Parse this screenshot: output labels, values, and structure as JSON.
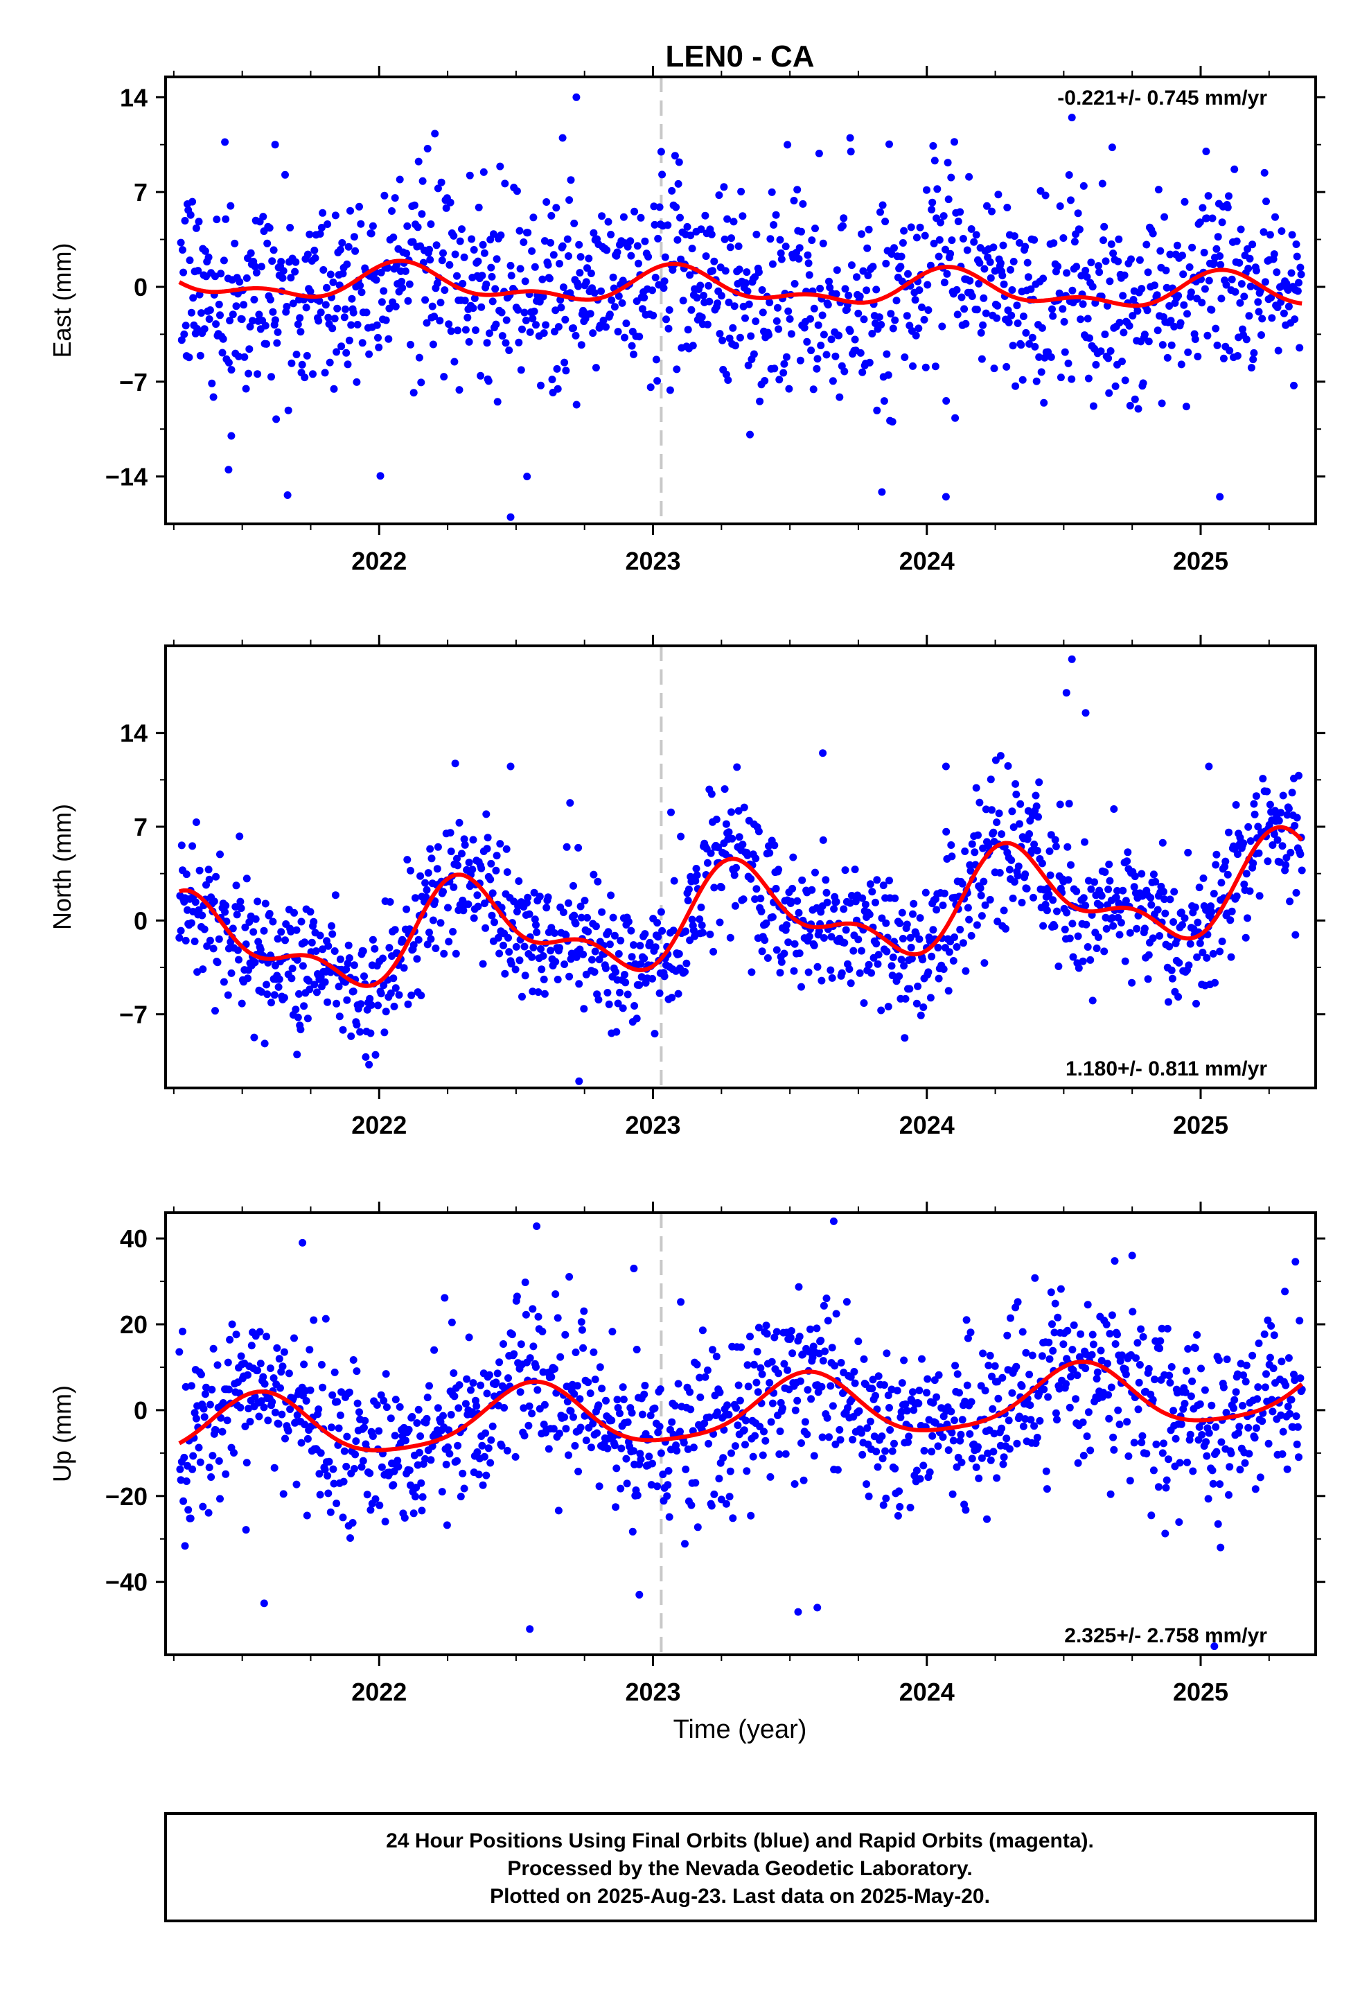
{
  "chart_data": [
    {
      "type": "scatter",
      "panel": "east",
      "title": "LEN0 - CA",
      "ylabel": "East (mm)",
      "xlabel": "",
      "xlim": [
        2021.22,
        2025.42
      ],
      "ylim": [
        -17.5,
        15.5
      ],
      "yticks": [
        14,
        7,
        0,
        -7,
        -14
      ],
      "yticklabels": [
        "14",
        "7",
        "0",
        "−7",
        "−14"
      ],
      "xticks": [
        2022,
        2023,
        2024,
        2025
      ],
      "xticklabels": [
        "2022",
        "2023",
        "2024",
        "2025"
      ],
      "reference_line_x": 2023.03,
      "rate_label": "-0.221+/- 0.745 mm/yr",
      "rate_position": "top-right",
      "model": {
        "rate": -0.221,
        "annual": [
          0.6,
          0.9
        ],
        "semiannual": [
          0.5,
          0.4
        ],
        "offset": 0.0
      },
      "series": [
        {
          "color": "#0000ff",
          "scatter_sd": 3.7,
          "n_points": 1380,
          "outliers": [
            [
              2021.45,
              -13.5
            ],
            [
              2021.46,
              -11.0
            ],
            [
              2022.48,
              -17.0
            ],
            [
              2022.54,
              -14.0
            ],
            [
              2022.72,
              14.0
            ],
            [
              2024.07,
              -15.5
            ],
            [
              2025.07,
              -15.5
            ],
            [
              2024.53,
              12.5
            ],
            [
              2022.67,
              11.0
            ],
            [
              2021.62,
              10.5
            ],
            [
              2023.72,
              11.0
            ],
            [
              2025.02,
              10.0
            ]
          ]
        },
        {
          "name": "model",
          "color": "#ff0000"
        }
      ]
    },
    {
      "type": "scatter",
      "panel": "north",
      "ylabel": "North (mm)",
      "xlabel": "",
      "xlim": [
        2021.22,
        2025.42
      ],
      "ylim": [
        -12.5,
        20.5
      ],
      "yticks": [
        14,
        7,
        0,
        -7
      ],
      "yticklabels": [
        "14",
        "7",
        "0",
        "−7"
      ],
      "xticks": [
        2022,
        2023,
        2024,
        2025
      ],
      "xticklabels": [
        "2022",
        "2023",
        "2024",
        "2025"
      ],
      "reference_line_x": 2023.03,
      "rate_label": "1.180+/- 0.811 mm/yr",
      "rate_position": "bottom-right",
      "model": {
        "rate": 1.18,
        "annual": [
          2.6,
          -1.6
        ],
        "semiannual": [
          -0.3,
          -1.6
        ],
        "offset": -0.2
      },
      "series": [
        {
          "color": "#0000ff",
          "scatter_sd": 2.6,
          "n_points": 1380,
          "outliers": [
            [
              2024.53,
              19.5
            ],
            [
              2024.51,
              17.0
            ],
            [
              2024.58,
              15.5
            ],
            [
              2022.73,
              -12.0
            ],
            [
              2023.62,
              12.5
            ],
            [
              2022.48,
              11.5
            ],
            [
              2025.03,
              11.5
            ],
            [
              2024.07,
              11.5
            ],
            [
              2021.7,
              -10.0
            ]
          ]
        },
        {
          "name": "model",
          "color": "#ff0000"
        }
      ]
    },
    {
      "type": "scatter",
      "panel": "up",
      "ylabel": "Up (mm)",
      "xlabel": "Time (year)",
      "xlim": [
        2021.22,
        2025.42
      ],
      "ylim": [
        -57,
        46
      ],
      "yticks": [
        40,
        20,
        0,
        -20,
        -40
      ],
      "yticklabels": [
        "40",
        "20",
        "0",
        "−20",
        "−40"
      ],
      "xticks": [
        2022,
        2023,
        2024,
        2025
      ],
      "xticklabels": [
        "2022",
        "2023",
        "2024",
        "2025"
      ],
      "reference_line_x": 2023.03,
      "rate_label": "2.325+/- 2.758 mm/yr",
      "rate_position": "bottom-right",
      "model": {
        "rate": 2.325,
        "annual": [
          -2.5,
          -6.8
        ],
        "semiannual": [
          1.2,
          0.8
        ],
        "offset": -1.0
      },
      "series": [
        {
          "color": "#0000ff",
          "scatter_sd": 10.0,
          "n_points": 1380,
          "outliers": [
            [
              2023.66,
              44.0
            ],
            [
              2021.72,
              39.0
            ],
            [
              2022.55,
              -51.0
            ],
            [
              2023.53,
              -47.0
            ],
            [
              2023.6,
              -46.0
            ],
            [
              2022.95,
              -43.0
            ],
            [
              2021.58,
              -45.0
            ],
            [
              2025.05,
              -55.0
            ],
            [
              2024.75,
              36.0
            ],
            [
              2022.93,
              33.0
            ]
          ]
        },
        {
          "name": "model",
          "color": "#ff0000"
        }
      ]
    }
  ],
  "footer": {
    "line1": "24 Hour Positions Using Final Orbits (blue) and Rapid Orbits (magenta).",
    "line2": "Processed by the Nevada Geodetic Laboratory.",
    "line3": "Plotted on 2025-Aug-23. Last data on 2025-May-20."
  }
}
